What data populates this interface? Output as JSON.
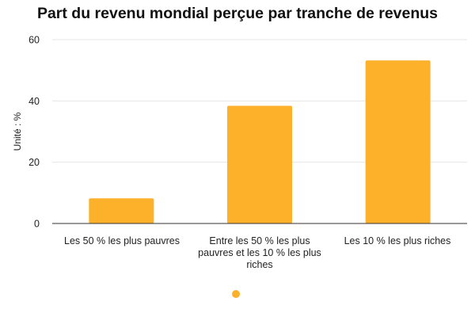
{
  "chart_data": {
    "type": "bar",
    "title": "Part du revenu mondial perçue par tranche de revenus",
    "xlabel": "",
    "ylabel": "Unité : %",
    "categories": [
      "Les 50 % les plus pauvres",
      "Entre les 50 % les plus pauvres et les 10 % les plus riches",
      "Les 10 % les plus riches"
    ],
    "values": [
      8.2,
      38.4,
      53.2
    ],
    "ylim": [
      0,
      60
    ],
    "yticks": [
      "0",
      "20",
      "40",
      "60"
    ],
    "ytick_values": [
      0,
      20,
      40,
      60
    ],
    "grid": true,
    "legend": "bottom-center",
    "bar_color": "#FDB12A",
    "grid_color": "#e6e6e6",
    "axis_color": "#333333"
  }
}
